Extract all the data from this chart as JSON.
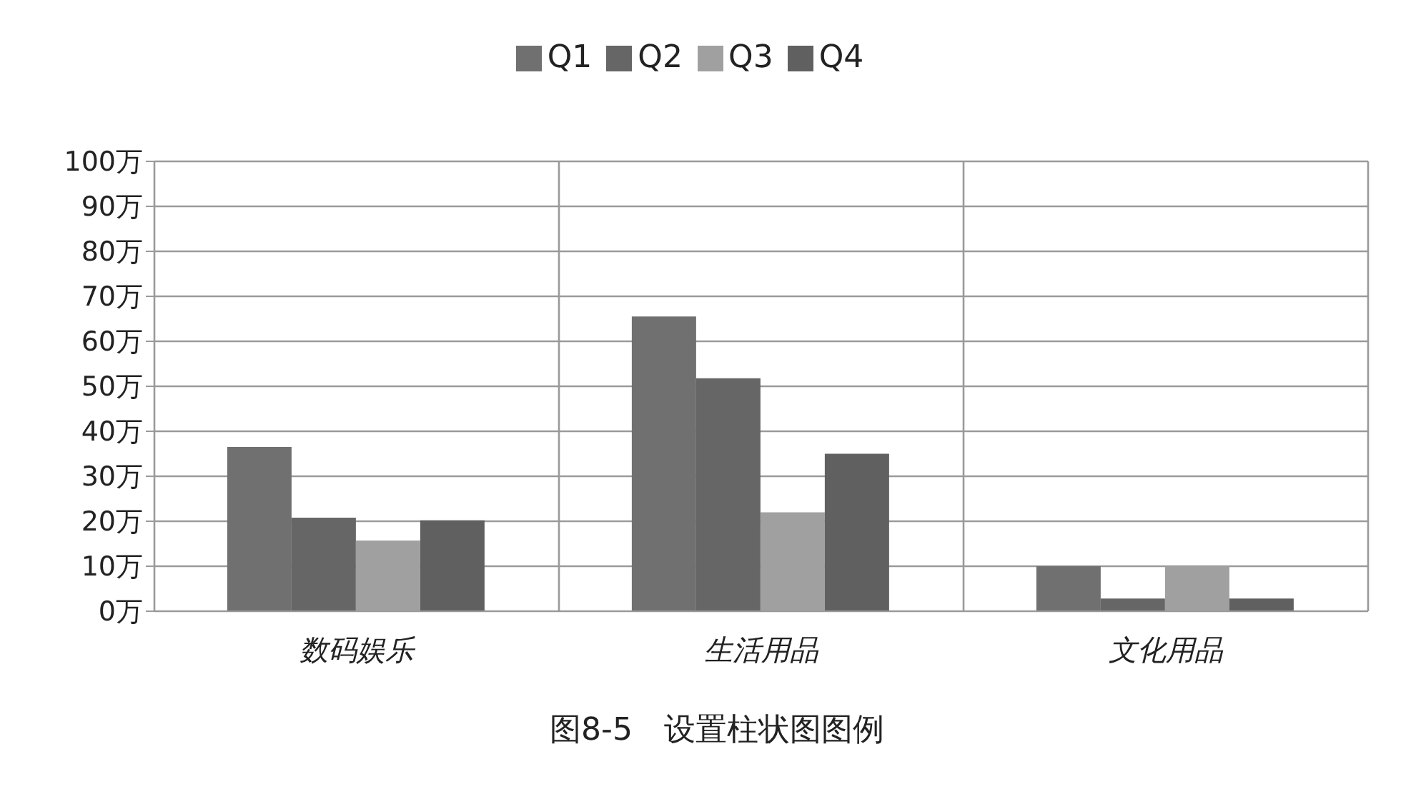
{
  "chart_data": {
    "type": "bar",
    "title": "图8-5　设置柱状图图例",
    "categories": [
      "数码娱乐",
      "生活用品",
      "文化用品"
    ],
    "series": [
      {
        "name": "Q1",
        "color": "#717071",
        "values": [
          36.5,
          65.5,
          10
        ]
      },
      {
        "name": "Q2",
        "color": "#676667",
        "values": [
          20.8,
          51.8,
          2.8
        ]
      },
      {
        "name": "Q3",
        "color": "#a0a0a0",
        "values": [
          15.7,
          22,
          10
        ]
      },
      {
        "name": "Q4",
        "color": "#616061",
        "values": [
          20.2,
          35,
          2.8
        ]
      }
    ],
    "ylim": [
      0,
      100
    ],
    "yticks": [
      {
        "value": 0,
        "label": "0万"
      },
      {
        "value": 10,
        "label": "10万"
      },
      {
        "value": 20,
        "label": "20万"
      },
      {
        "value": 30,
        "label": "30万"
      },
      {
        "value": 40,
        "label": "40万"
      },
      {
        "value": 50,
        "label": "50万"
      },
      {
        "value": 60,
        "label": "60万"
      },
      {
        "value": 70,
        "label": "70万"
      },
      {
        "value": 80,
        "label": "80万"
      },
      {
        "value": 90,
        "label": "90万"
      },
      {
        "value": 100,
        "label": "100万"
      }
    ],
    "grid": true,
    "legend": "top"
  }
}
